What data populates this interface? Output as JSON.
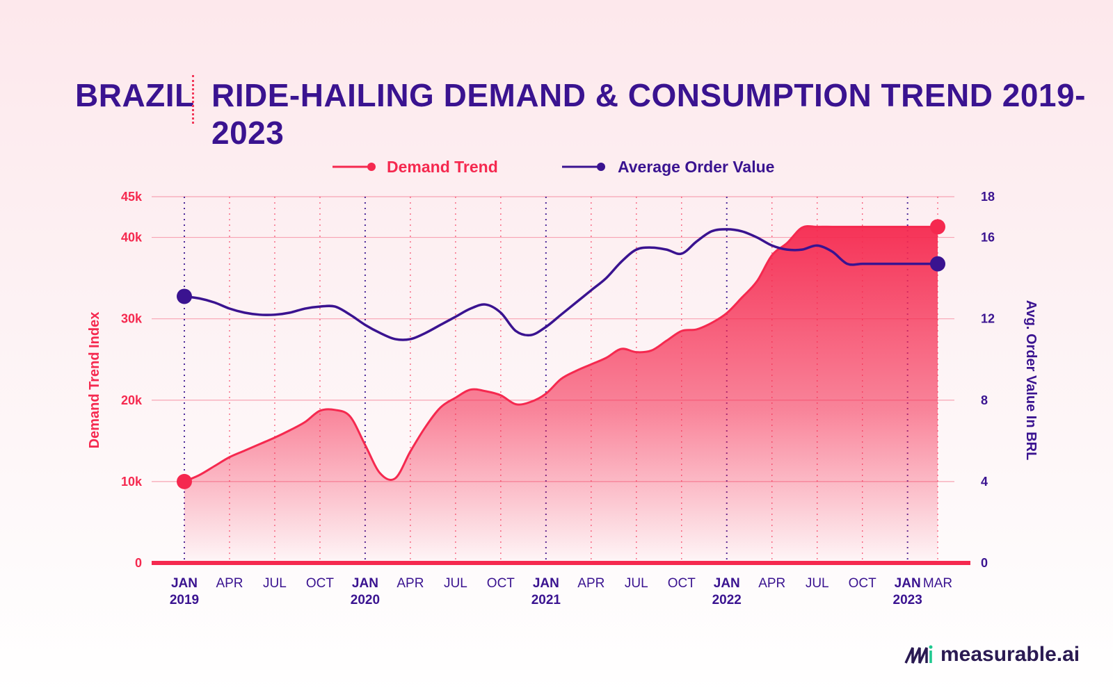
{
  "header": {
    "country": "BRAZIL",
    "title": "RIDE-HAILING DEMAND & CONSUMPTION TREND 2019-2023"
  },
  "brand": {
    "name": "measurable.ai",
    "logo_icon": "measurable-logo-icon"
  },
  "colors": {
    "demand": "#f5294f",
    "aov": "#3a1390",
    "grid": "#f7a3b3"
  },
  "chart_data": {
    "type": "area",
    "legend": {
      "placement": "top-center"
    },
    "grid": true,
    "x": [
      "2019-01",
      "2019-02",
      "2019-03",
      "2019-04",
      "2019-05",
      "2019-06",
      "2019-07",
      "2019-08",
      "2019-09",
      "2019-10",
      "2019-11",
      "2019-12",
      "2020-01",
      "2020-02",
      "2020-03",
      "2020-04",
      "2020-05",
      "2020-06",
      "2020-07",
      "2020-08",
      "2020-09",
      "2020-10",
      "2020-11",
      "2020-12",
      "2021-01",
      "2021-02",
      "2021-03",
      "2021-04",
      "2021-05",
      "2021-06",
      "2021-07",
      "2021-08",
      "2021-09",
      "2021-10",
      "2021-11",
      "2021-12",
      "2022-01",
      "2022-02",
      "2022-03",
      "2022-04",
      "2022-05",
      "2022-06",
      "2022-07",
      "2022-08",
      "2022-09",
      "2022-10",
      "2022-11",
      "2022-12",
      "2023-01",
      "2023-02",
      "2023-03"
    ],
    "x_ticks": [
      {
        "month": "JAN",
        "year": "2019"
      },
      {
        "month": "APR",
        "year": ""
      },
      {
        "month": "JUL",
        "year": ""
      },
      {
        "month": "OCT",
        "year": ""
      },
      {
        "month": "JAN",
        "year": "2020"
      },
      {
        "month": "APR",
        "year": ""
      },
      {
        "month": "JUL",
        "year": ""
      },
      {
        "month": "OCT",
        "year": ""
      },
      {
        "month": "JAN",
        "year": "2021"
      },
      {
        "month": "APR",
        "year": ""
      },
      {
        "month": "JUL",
        "year": ""
      },
      {
        "month": "OCT",
        "year": ""
      },
      {
        "month": "JAN",
        "year": "2022"
      },
      {
        "month": "APR",
        "year": ""
      },
      {
        "month": "JUL",
        "year": ""
      },
      {
        "month": "OCT",
        "year": ""
      },
      {
        "month": "JAN",
        "year": "2023"
      },
      {
        "month": "MAR",
        "year": ""
      }
    ],
    "y_left": {
      "label": "Demand Trend Index",
      "ticks": [
        "0",
        "10k",
        "20k",
        "30k",
        "40k",
        "45k"
      ],
      "range": [
        0,
        45000
      ]
    },
    "y_right": {
      "label": "Avg. Order Value In BRL",
      "ticks": [
        "0",
        "4",
        "8",
        "12",
        "16",
        "18"
      ],
      "range": [
        0,
        18
      ]
    },
    "series": [
      {
        "name": "Demand Trend",
        "axis": "left",
        "values": [
          10000,
          10800,
          11900,
          13000,
          13800,
          14600,
          15400,
          16300,
          17300,
          18700,
          18800,
          18000,
          14500,
          11000,
          10400,
          13700,
          16700,
          19100,
          20300,
          21300,
          21100,
          20600,
          19500,
          19800,
          20800,
          22600,
          23600,
          24400,
          25200,
          26300,
          25900,
          26100,
          27300,
          28500,
          28700,
          29500,
          30700,
          32600,
          34600,
          37800,
          39300,
          41200,
          41300,
          41300,
          41300,
          41300,
          41300,
          41300,
          41300,
          41300,
          41300
        ]
      },
      {
        "name": "Average Order Value",
        "axis": "right",
        "values": [
          13.1,
          13.0,
          12.8,
          12.5,
          12.3,
          12.2,
          12.2,
          12.3,
          12.5,
          12.6,
          12.6,
          12.2,
          11.7,
          11.3,
          11.0,
          11.0,
          11.3,
          11.7,
          12.1,
          12.5,
          12.7,
          12.3,
          11.4,
          11.2,
          11.6,
          12.2,
          12.8,
          13.4,
          14.0,
          14.8,
          15.4,
          15.5,
          15.4,
          15.2,
          15.8,
          16.3,
          16.4,
          16.3,
          16.0,
          15.6,
          15.4,
          15.4,
          15.6,
          15.3,
          14.7,
          14.7,
          14.7,
          14.7,
          14.7,
          14.7,
          14.7
        ]
      }
    ]
  }
}
